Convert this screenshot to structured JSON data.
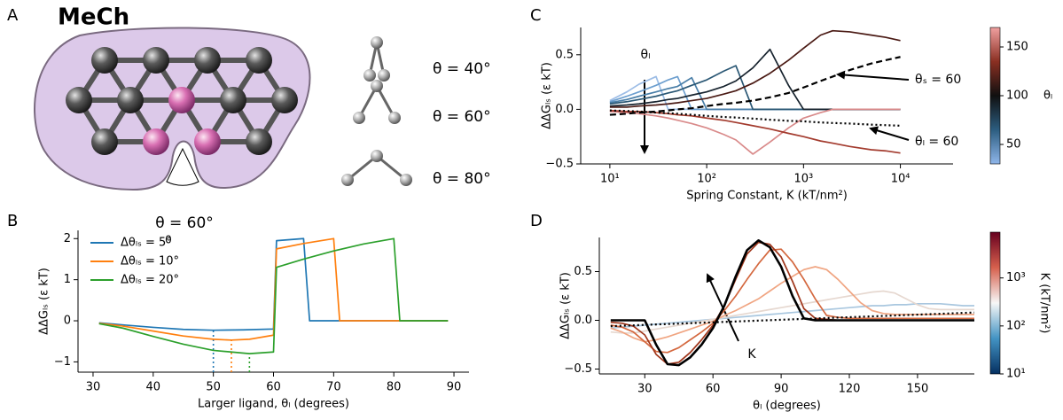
{
  "panel_labels": [
    "A",
    "B",
    "C",
    "D"
  ],
  "diagram": {
    "title": "MeCh",
    "angle_label": "θ = 60°",
    "index_label": "0",
    "molecules": [
      "θ = 40°",
      "θ = 60°",
      "θ = 80°"
    ]
  },
  "chart_data": [
    {
      "type": "line",
      "xlabel": "Larger ligand, θₗ (degrees)",
      "ylabel": "ΔΔGₗₛ (ε kT)",
      "xlim": [
        27.5,
        92.5
      ],
      "ylim": [
        -1.25,
        2.2
      ],
      "xticks": [
        30,
        40,
        50,
        60,
        70,
        80,
        90
      ],
      "yticks": [
        {
          "value": -1,
          "label": "−1"
        },
        0,
        1,
        2
      ],
      "legend": "upper left",
      "series": [
        {
          "name": "Δθₗₛ = 5°",
          "color": "#1f77b4",
          "min_x": 50,
          "x": [
            31,
            35,
            40,
            45,
            50,
            55,
            60,
            60.5,
            65,
            66,
            70,
            80,
            89
          ],
          "values": [
            -0.05,
            -0.1,
            -0.16,
            -0.21,
            -0.23,
            -0.22,
            -0.2,
            1.95,
            2.0,
            0,
            0,
            0,
            0
          ]
        },
        {
          "name": "Δθₗₛ = 10°",
          "color": "#ff7f0e",
          "min_x": 53,
          "x": [
            31,
            35,
            40,
            45,
            50,
            53,
            56,
            60,
            60.5,
            65,
            70,
            71,
            80,
            89
          ],
          "values": [
            -0.06,
            -0.13,
            -0.25,
            -0.37,
            -0.45,
            -0.47,
            -0.45,
            -0.35,
            1.75,
            1.88,
            2.0,
            0,
            0,
            0
          ]
        },
        {
          "name": "Δθₗₛ = 20°",
          "color": "#2ca02c",
          "min_x": 56,
          "x": [
            31,
            35,
            40,
            45,
            50,
            56,
            60,
            60.5,
            65,
            70,
            75,
            80,
            81,
            89
          ],
          "values": [
            -0.07,
            -0.18,
            -0.38,
            -0.57,
            -0.72,
            -0.8,
            -0.76,
            1.3,
            1.5,
            1.7,
            1.87,
            2.0,
            0,
            0
          ]
        }
      ]
    },
    {
      "type": "line",
      "xlabel": "Spring Constant, K (kT/nm²)",
      "ylabel": "ΔΔGₗₛ (ε kT)",
      "xscale": "log",
      "xlim": [
        5,
        35000
      ],
      "ylim": [
        -0.5,
        0.75
      ],
      "xticks": [
        {
          "value": 10,
          "label": "10¹"
        },
        {
          "value": 100,
          "label": "10²"
        },
        {
          "value": 1000,
          "label": "10³"
        },
        {
          "value": 10000,
          "label": "10⁴"
        }
      ],
      "yticks": [
        {
          "value": -0.5,
          "label": "−0.5"
        },
        {
          "value": 0,
          "label": "0.0"
        },
        0.5
      ],
      "x": [
        10,
        15,
        20,
        30,
        40,
        50,
        70,
        100,
        150,
        200,
        300,
        450,
        700,
        1000,
        1500,
        2000,
        3000,
        5000,
        7000,
        10000
      ],
      "series": [
        {
          "color": "#9dbde6",
          "values": [
            0.08,
            0.16,
            0.23,
            0.3,
            0,
            0,
            0,
            0,
            0,
            0,
            0,
            0,
            0,
            0,
            0,
            0,
            0,
            0,
            0,
            0
          ]
        },
        {
          "color": "#6d9fcf",
          "values": [
            0.07,
            0.12,
            0.16,
            0.22,
            0.27,
            0.3,
            0,
            0,
            0,
            0,
            0,
            0,
            0,
            0,
            0,
            0,
            0,
            0,
            0,
            0
          ]
        },
        {
          "color": "#4a7fa8",
          "values": [
            0.06,
            0.09,
            0.12,
            0.16,
            0.19,
            0.21,
            0.29,
            0,
            0,
            0,
            0,
            0,
            0,
            0,
            0,
            0,
            0,
            0,
            0,
            0
          ]
        },
        {
          "color": "#2b5875",
          "values": [
            0.05,
            0.07,
            0.09,
            0.12,
            0.15,
            0.17,
            0.22,
            0.27,
            0.35,
            0.4,
            0,
            0,
            0,
            0,
            0,
            0,
            0,
            0,
            0,
            0
          ]
        },
        {
          "color": "#17232e",
          "values": [
            0.03,
            0.04,
            0.05,
            0.07,
            0.09,
            0.1,
            0.13,
            0.16,
            0.21,
            0.26,
            0.38,
            0.55,
            0.22,
            0,
            0,
            0,
            0,
            0,
            0,
            0
          ]
        },
        {
          "color": "#4a1a14",
          "values": [
            0.02,
            0.02,
            0.03,
            0.04,
            0.05,
            0.06,
            0.08,
            0.1,
            0.14,
            0.17,
            0.24,
            0.33,
            0.45,
            0.56,
            0.68,
            0.72,
            0.71,
            0.68,
            0.66,
            0.63
          ]
        },
        {
          "color": "#d98a8a",
          "values": [
            -0.02,
            -0.03,
            -0.04,
            -0.06,
            -0.08,
            -0.1,
            -0.13,
            -0.17,
            -0.23,
            -0.28,
            -0.41,
            -0.3,
            -0.17,
            -0.08,
            -0.03,
            0,
            0,
            0,
            0,
            0
          ]
        },
        {
          "color": "#a33b2e",
          "values": [
            -0.01,
            -0.02,
            -0.02,
            -0.03,
            -0.04,
            -0.05,
            -0.06,
            -0.08,
            -0.1,
            -0.12,
            -0.15,
            -0.18,
            -0.22,
            -0.25,
            -0.29,
            -0.31,
            -0.34,
            -0.37,
            -0.38,
            -0.4
          ]
        },
        {
          "color": "#000000",
          "linestyle": "dashed",
          "linewidth": 2.2,
          "values": [
            -0.05,
            -0.04,
            -0.03,
            -0.02,
            -0.01,
            0,
            0.01,
            0.03,
            0.05,
            0.06,
            0.08,
            0.11,
            0.15,
            0.2,
            0.26,
            0.3,
            0.36,
            0.42,
            0.45,
            0.48
          ]
        },
        {
          "color": "#000000",
          "linestyle": "dotted",
          "linewidth": 2.2,
          "values": [
            -0.01,
            -0.015,
            -0.02,
            -0.03,
            -0.035,
            -0.04,
            -0.05,
            -0.06,
            -0.07,
            -0.075,
            -0.085,
            -0.095,
            -0.105,
            -0.11,
            -0.12,
            -0.125,
            -0.13,
            -0.14,
            -0.145,
            -0.15
          ]
        }
      ],
      "annotations": [
        {
          "text": "θₗ"
        },
        {
          "text": "θₛ = 60"
        },
        {
          "text": "θₗ = 60"
        }
      ],
      "colorbar": {
        "label": "θₗ",
        "lim": [
          30,
          170
        ],
        "ticks": [
          50,
          100,
          150
        ],
        "colors": [
          "#8fb6ea",
          "#2c5d80",
          "#101010",
          "#8a2f22",
          "#f0a0a0"
        ]
      }
    },
    {
      "type": "line",
      "xlabel": "θₗ (degrees)",
      "ylabel": "ΔΔGₗₛ (ε kT)",
      "xlim": [
        10,
        175
      ],
      "ylim": [
        -0.55,
        0.85
      ],
      "xticks": [
        30,
        60,
        90,
        120,
        150
      ],
      "yticks": [
        {
          "value": -0.5,
          "label": "−0.5"
        },
        {
          "value": 0,
          "label": "0.0"
        },
        0.5
      ],
      "x": [
        15,
        20,
        25,
        30,
        35,
        40,
        45,
        50,
        55,
        60,
        65,
        70,
        75,
        80,
        85,
        90,
        95,
        100,
        105,
        110,
        115,
        120,
        125,
        130,
        135,
        140,
        145,
        150,
        155,
        160,
        165,
        170,
        175
      ],
      "series": [
        {
          "color": "#a9c7df",
          "values": [
            -0.08,
            -0.07,
            -0.06,
            -0.05,
            -0.04,
            -0.03,
            -0.02,
            -0.01,
            0,
            0.01,
            0.02,
            0.03,
            0.04,
            0.05,
            0.06,
            0.07,
            0.08,
            0.09,
            0.1,
            0.11,
            0.12,
            0.13,
            0.14,
            0.15,
            0.15,
            0.16,
            0.16,
            0.17,
            0.17,
            0.17,
            0.16,
            0.15,
            0.15
          ]
        },
        {
          "color": "#e6d8d0",
          "values": [
            -0.12,
            -0.13,
            -0.13,
            -0.11,
            -0.09,
            -0.07,
            -0.05,
            -0.03,
            -0.01,
            0.01,
            0.03,
            0.05,
            0.07,
            0.09,
            0.11,
            0.13,
            0.15,
            0.17,
            0.19,
            0.21,
            0.23,
            0.25,
            0.27,
            0.29,
            0.3,
            0.28,
            0.22,
            0.16,
            0.12,
            0.11,
            0.11,
            0.11,
            0.11
          ]
        },
        {
          "color": "#f0a582",
          "values": [
            -0.08,
            -0.12,
            -0.18,
            -0.22,
            -0.2,
            -0.17,
            -0.13,
            -0.09,
            -0.05,
            -0.01,
            0.05,
            0.1,
            0.16,
            0.22,
            0.3,
            0.38,
            0.45,
            0.52,
            0.55,
            0.52,
            0.42,
            0.3,
            0.18,
            0.1,
            0.07,
            0.06,
            0.06,
            0.06,
            0.06,
            0.06,
            0.06,
            0.06,
            0.06
          ]
        },
        {
          "color": "#d4683f",
          "values": [
            -0.05,
            -0.07,
            -0.12,
            -0.22,
            -0.32,
            -0.33,
            -0.28,
            -0.2,
            -0.12,
            -0.03,
            0.1,
            0.25,
            0.42,
            0.58,
            0.72,
            0.73,
            0.6,
            0.42,
            0.22,
            0.05,
            0.03,
            0.02,
            0.02,
            0.02,
            0.02,
            0.02,
            0.02,
            0.02,
            0.02,
            0.02,
            0.02,
            0.02,
            0.02
          ]
        },
        {
          "color": "#a0361b",
          "values": [
            -0.02,
            -0.03,
            -0.06,
            -0.15,
            -0.35,
            -0.45,
            -0.43,
            -0.33,
            -0.2,
            -0.05,
            0.15,
            0.42,
            0.68,
            0.8,
            0.78,
            0.65,
            0.4,
            0.12,
            0.02,
            0.01,
            0,
            0,
            0,
            0,
            0,
            0,
            0,
            0,
            0,
            0,
            0,
            0,
            0
          ]
        },
        {
          "color": "#000000",
          "linewidth": 2.6,
          "values": [
            0,
            0,
            0,
            0,
            -0.25,
            -0.45,
            -0.46,
            -0.38,
            -0.25,
            -0.08,
            0.15,
            0.45,
            0.72,
            0.82,
            0.75,
            0.55,
            0.25,
            0.02,
            0,
            0,
            0,
            0,
            0,
            0,
            0,
            0,
            0,
            0,
            0,
            0,
            0,
            0,
            0
          ]
        },
        {
          "color": "#000000",
          "linestyle": "dotted",
          "linewidth": 2.2,
          "x": [
            15,
            175
          ],
          "values": [
            -0.06,
            0.08
          ]
        }
      ],
      "annotations": [
        {
          "text": "K"
        }
      ],
      "colorbar": {
        "label": "K (kT/nm²)",
        "log": true,
        "lim": [
          10,
          9000
        ],
        "ticks": [
          {
            "value": 10,
            "label": "10¹"
          },
          {
            "value": 100,
            "label": "10²"
          },
          {
            "value": 1000,
            "label": "10³"
          }
        ],
        "colors": [
          "#053061",
          "#4393c3",
          "#f7f7f7",
          "#d6604d",
          "#67001f"
        ]
      }
    }
  ]
}
